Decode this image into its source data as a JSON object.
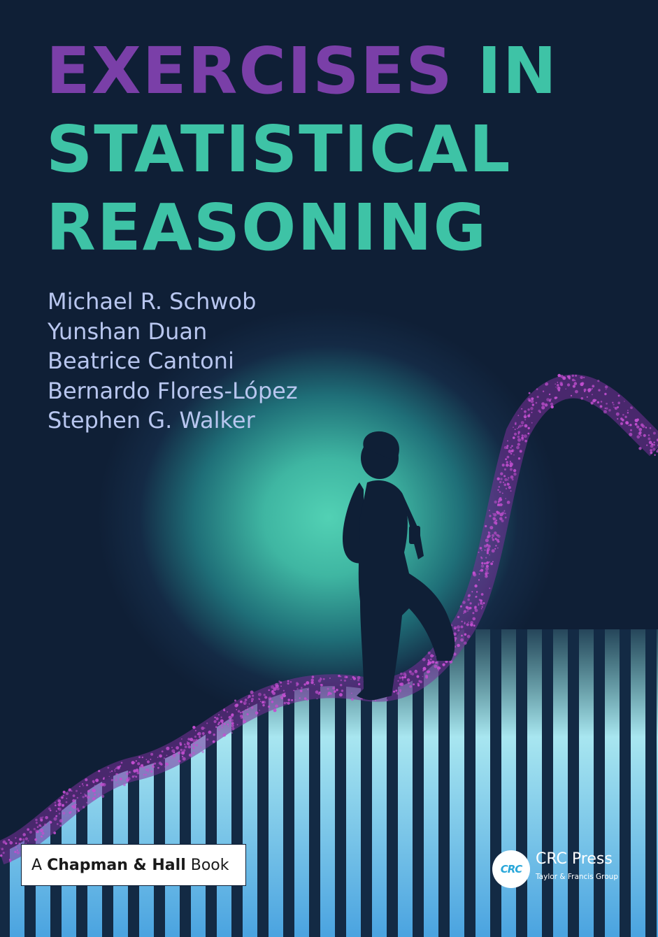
{
  "title": {
    "line1_accent": "EXERCISES",
    "line1_rest": " IN",
    "line2": "STATISTICAL",
    "line3": "REASONING"
  },
  "authors": [
    "Michael R. Schwob",
    "Yunshan Duan",
    "Beatrice Cantoni",
    "Bernardo Flores-López",
    "Stephen G. Walker"
  ],
  "series": {
    "prefix": "A",
    "name": "Chapman & Hall",
    "suffix": "Book"
  },
  "publisher": {
    "logo_text": "CRC",
    "name": "CRC Press",
    "group": "Taylor & Francis Group"
  },
  "colors": {
    "background": "#0f1f36",
    "title_green": "#3ec3a6",
    "title_purple": "#7a3fa8",
    "author_text": "#b8c6ef",
    "dots": "#c24fd0"
  },
  "icons": [
    "hiker-silhouette-icon",
    "crc-logo-icon"
  ]
}
